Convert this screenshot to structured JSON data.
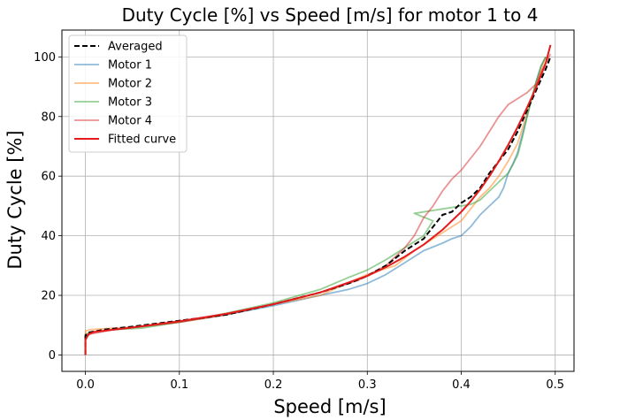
{
  "chart_data": {
    "type": "line",
    "title": "Duty Cycle [%] vs Speed [m/s] for motor 1 to 4",
    "xlabel": "Speed [m/s]",
    "ylabel": "Duty Cycle [%]",
    "xlim": [
      -0.025,
      0.52
    ],
    "ylim": [
      -5.5,
      109
    ],
    "xticks": [
      0.0,
      0.1,
      0.2,
      0.3,
      0.4,
      0.5
    ],
    "xtick_labels": [
      "0.0",
      "0.1",
      "0.2",
      "0.3",
      "0.4",
      "0.5"
    ],
    "yticks": [
      0,
      20,
      40,
      60,
      80,
      100
    ],
    "ytick_labels": [
      "0",
      "20",
      "40",
      "60",
      "80",
      "100"
    ],
    "grid": true,
    "legend_position": "top-left",
    "series": [
      {
        "name": "Averaged",
        "color": "#000000",
        "style": "dashed",
        "x": [
          0,
          0,
          0,
          0.003,
          0.02,
          0.05,
          0.1,
          0.15,
          0.2,
          0.25,
          0.28,
          0.3,
          0.32,
          0.34,
          0.36,
          0.37,
          0.38,
          0.39,
          0.4,
          0.41,
          0.42,
          0.43,
          0.44,
          0.45,
          0.46,
          0.47,
          0.48,
          0.49,
          0.495
        ],
        "y": [
          0,
          3,
          6.5,
          7.5,
          8.5,
          9.5,
          11.5,
          13.5,
          17,
          21,
          24,
          26.5,
          30,
          35,
          39,
          43,
          47,
          48,
          51,
          53,
          56,
          61,
          65,
          69,
          75,
          82,
          89,
          96,
          100
        ]
      },
      {
        "name": "Motor 1",
        "color": "#1f77b4",
        "style": "solid",
        "x": [
          0,
          0,
          0.005,
          0.03,
          0.06,
          0.1,
          0.15,
          0.2,
          0.25,
          0.28,
          0.3,
          0.32,
          0.34,
          0.36,
          0.38,
          0.39,
          0.4,
          0.41,
          0.42,
          0.43,
          0.44,
          0.445,
          0.45,
          0.455,
          0.46,
          0.465,
          0.47,
          0.475,
          0.48,
          0.485,
          0.49
        ],
        "y": [
          0,
          5,
          7.5,
          8.5,
          9.5,
          11,
          13.5,
          16.5,
          20,
          22,
          24,
          27,
          31,
          35,
          37.5,
          39,
          40,
          43,
          47,
          50,
          53,
          56,
          61,
          64,
          68,
          74,
          80,
          86,
          92,
          97,
          100
        ]
      },
      {
        "name": "Motor 2",
        "color": "#ff7f0e",
        "style": "solid",
        "x": [
          0,
          0,
          0.005,
          0.03,
          0.06,
          0.1,
          0.15,
          0.2,
          0.25,
          0.3,
          0.33,
          0.35,
          0.37,
          0.38,
          0.39,
          0.4,
          0.41,
          0.42,
          0.43,
          0.44,
          0.45,
          0.46,
          0.465,
          0.47,
          0.475,
          0.48,
          0.485,
          0.49
        ],
        "y": [
          0,
          8,
          8.5,
          9,
          9.5,
          11,
          13.5,
          17,
          20,
          27,
          30,
          35,
          39,
          41,
          43,
          45,
          49,
          53,
          56,
          60,
          65,
          71,
          76,
          81,
          86,
          91,
          96,
          100
        ]
      },
      {
        "name": "Motor 3",
        "color": "#2ca02c",
        "style": "solid",
        "x": [
          0,
          0,
          0.005,
          0.03,
          0.06,
          0.1,
          0.15,
          0.2,
          0.25,
          0.28,
          0.3,
          0.32,
          0.34,
          0.36,
          0.37,
          0.35,
          0.37,
          0.39,
          0.41,
          0.42,
          0.43,
          0.44,
          0.45,
          0.46,
          0.465,
          0.47,
          0.475,
          0.48,
          0.485,
          0.49
        ],
        "y": [
          0,
          7,
          7.5,
          8.5,
          9,
          11,
          14,
          17.5,
          22,
          26,
          28.5,
          32,
          36,
          40,
          45,
          47.5,
          48.5,
          49.5,
          50.5,
          52,
          55,
          58,
          61,
          67,
          73,
          80,
          86,
          92,
          97,
          100
        ]
      },
      {
        "name": "Motor 4",
        "color": "#d62728",
        "style": "solid",
        "x": [
          0,
          0,
          0.005,
          0.03,
          0.06,
          0.1,
          0.15,
          0.2,
          0.25,
          0.29,
          0.32,
          0.34,
          0.35,
          0.36,
          0.37,
          0.38,
          0.39,
          0.4,
          0.41,
          0.42,
          0.43,
          0.44,
          0.45,
          0.46,
          0.47,
          0.48,
          0.485,
          0.49,
          0.495
        ],
        "y": [
          0,
          6,
          7,
          8.5,
          9.5,
          11,
          13.5,
          17,
          21,
          25,
          30,
          36,
          40,
          46,
          50,
          55,
          59,
          62,
          66,
          70,
          75,
          80,
          84,
          86,
          88,
          91,
          95,
          98,
          101
        ]
      },
      {
        "name": "Fitted curve",
        "color": "#e41a1c",
        "style": "solid",
        "x": [
          0,
          0,
          0.003,
          0.01,
          0.05,
          0.1,
          0.15,
          0.2,
          0.25,
          0.3,
          0.32,
          0.34,
          0.36,
          0.38,
          0.4,
          0.41,
          0.42,
          0.43,
          0.44,
          0.45,
          0.46,
          0.47,
          0.48,
          0.49,
          0.495
        ],
        "y": [
          0,
          5,
          7,
          7.8,
          9.2,
          11.3,
          13.8,
          17,
          21,
          26.5,
          29.5,
          33,
          37,
          42,
          48,
          51.5,
          55.5,
          60,
          65,
          70.5,
          76.5,
          83,
          90,
          98,
          104
        ]
      }
    ]
  }
}
